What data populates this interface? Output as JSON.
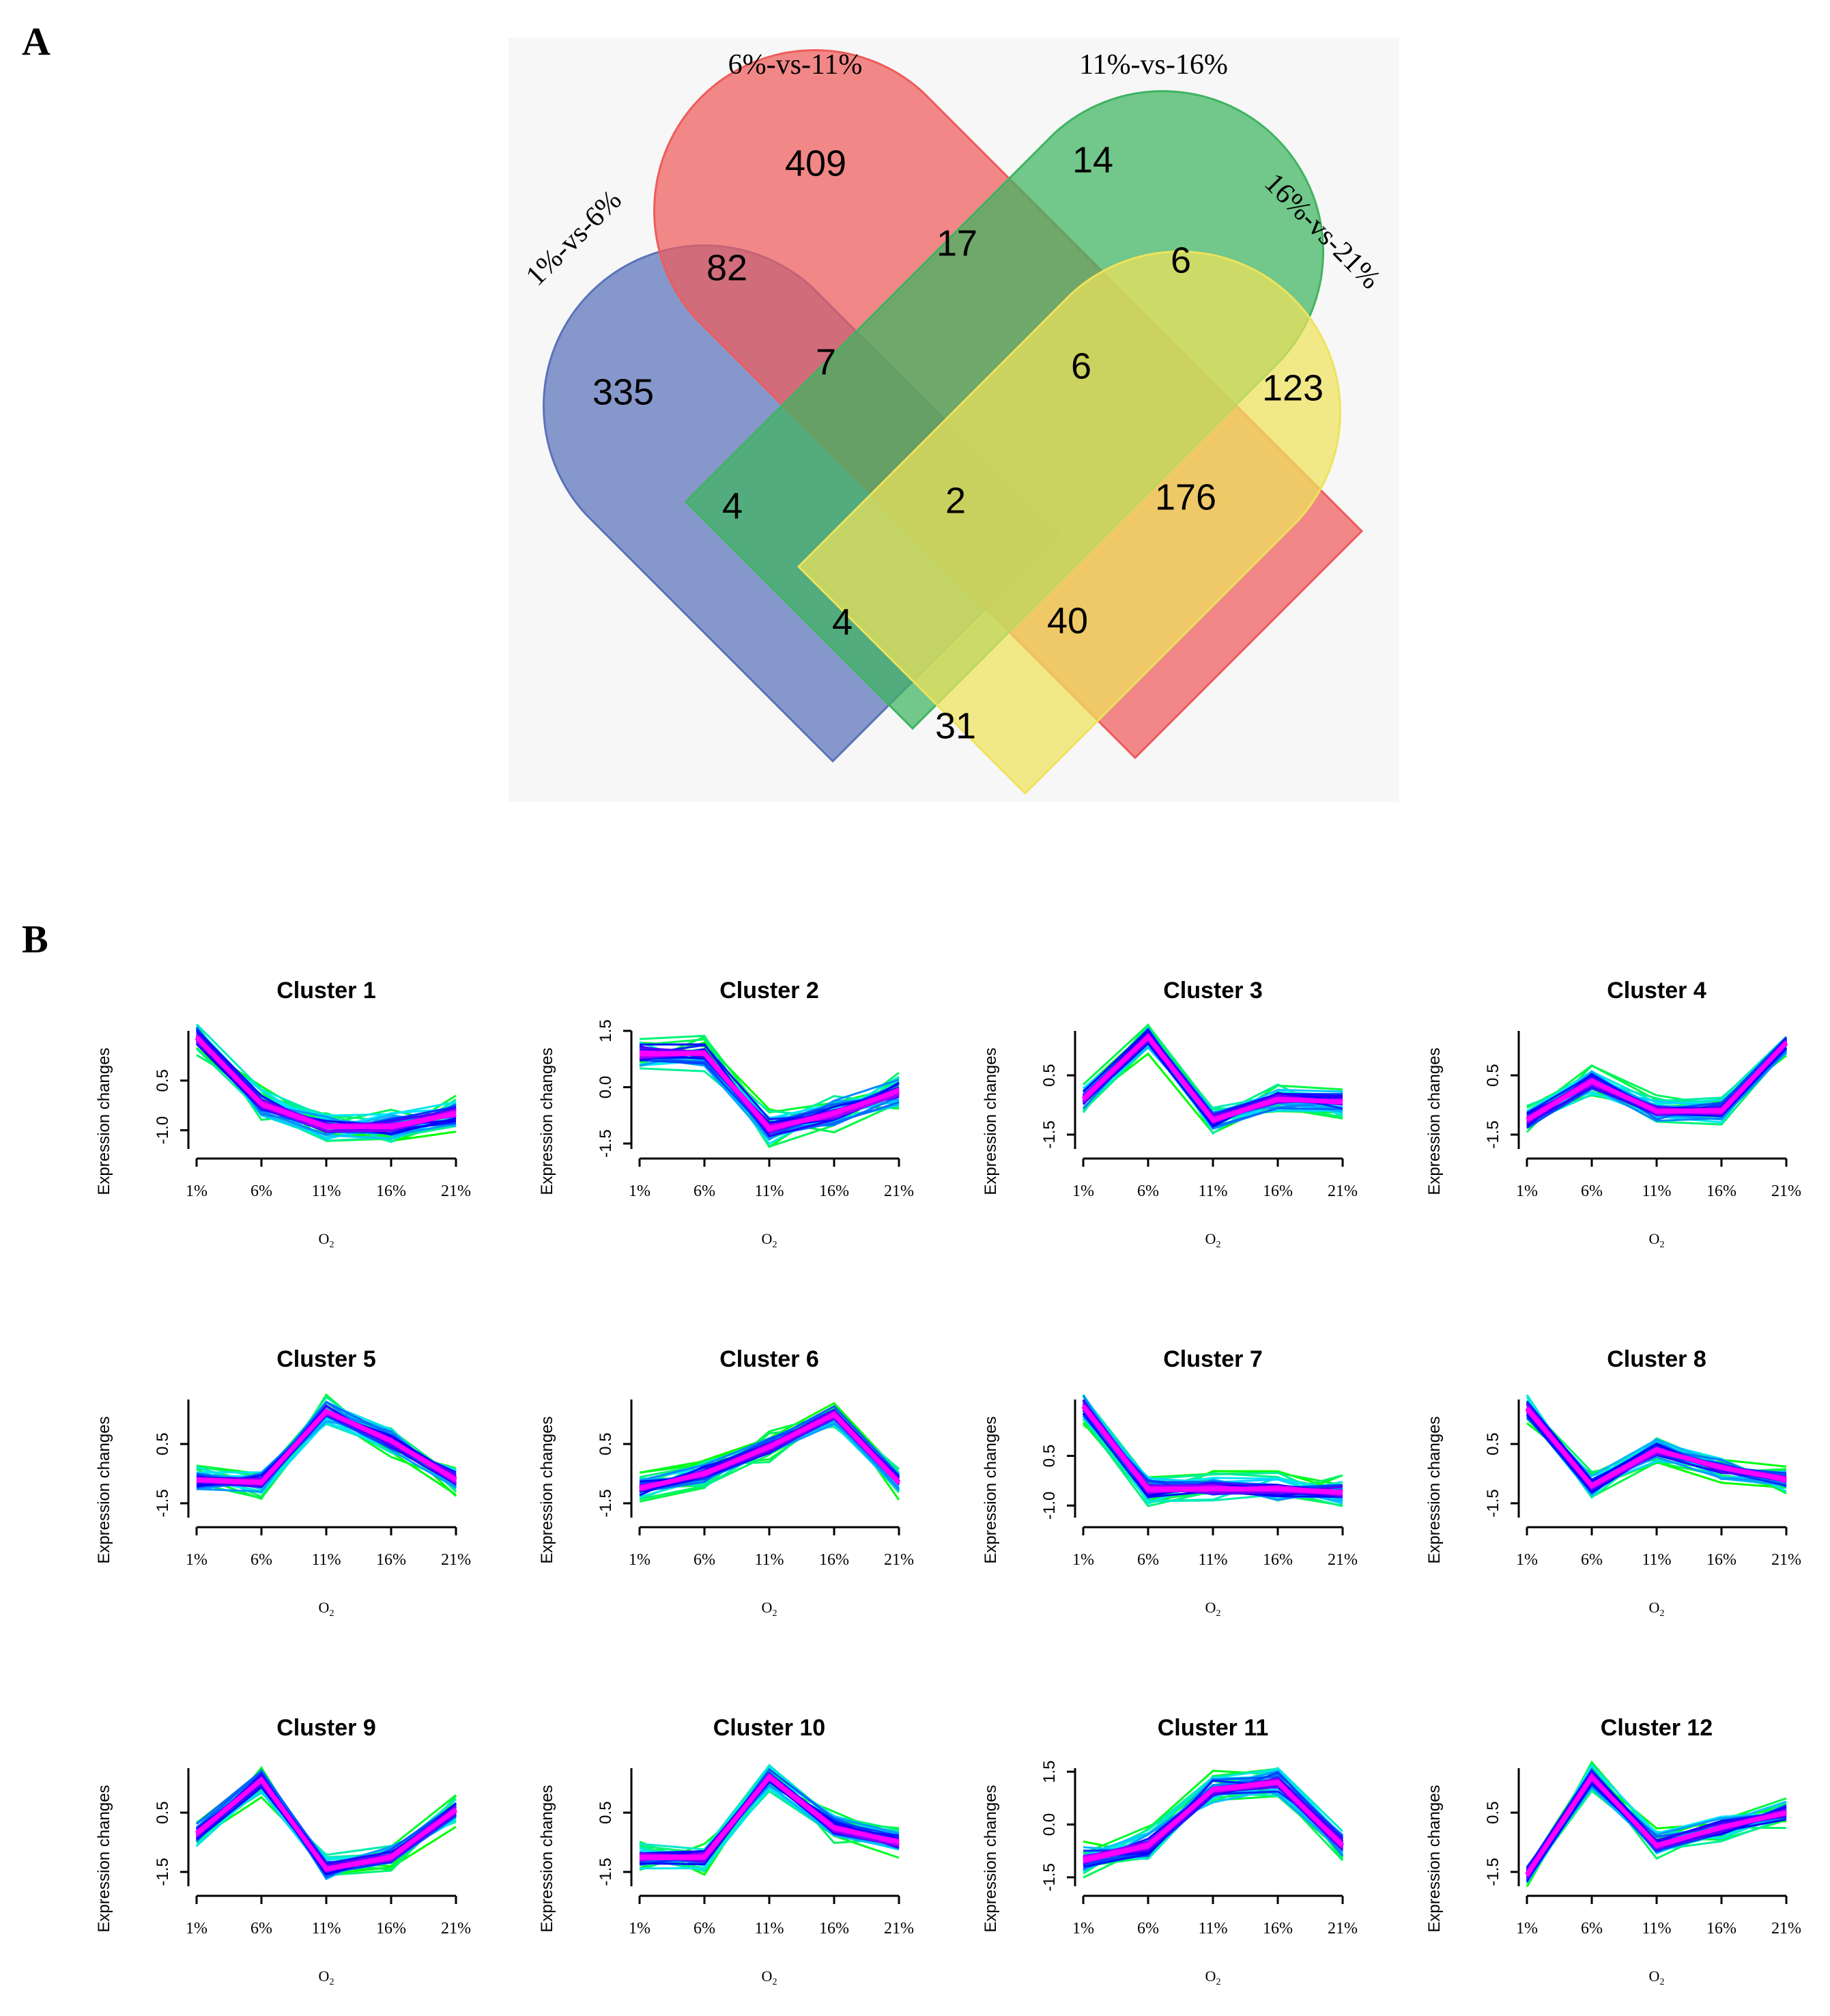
{
  "panel_a": {
    "letter": "A"
  },
  "panel_b": {
    "letter": "B"
  },
  "chart_data": [
    {
      "type": "venn",
      "sets": [
        {
          "name": "1%-vs-6%",
          "color": "#5a72ba"
        },
        {
          "name": "6%-vs-11%",
          "color": "#ef5b5b"
        },
        {
          "name": "11%-vs-16%",
          "color": "#3fb460"
        },
        {
          "name": "16%-vs-21%",
          "color": "#eee35c"
        }
      ],
      "regions": [
        {
          "sets": [
            "1%-vs-6%"
          ],
          "value": 335
        },
        {
          "sets": [
            "6%-vs-11%"
          ],
          "value": 409
        },
        {
          "sets": [
            "11%-vs-16%"
          ],
          "value": 14
        },
        {
          "sets": [
            "16%-vs-21%"
          ],
          "value": 123
        },
        {
          "sets": [
            "1%-vs-6%",
            "6%-vs-11%"
          ],
          "value": 82
        },
        {
          "sets": [
            "6%-vs-11%",
            "11%-vs-16%"
          ],
          "value": 17
        },
        {
          "sets": [
            "11%-vs-16%",
            "16%-vs-21%"
          ],
          "value": 6
        },
        {
          "sets": [
            "1%-vs-6%",
            "6%-vs-11%",
            "11%-vs-16%"
          ],
          "value": 7
        },
        {
          "sets": [
            "6%-vs-11%",
            "11%-vs-16%",
            "16%-vs-21%"
          ],
          "value": 6
        },
        {
          "sets": [
            "1%-vs-6%",
            "11%-vs-16%"
          ],
          "value": 4
        },
        {
          "sets": [
            "1%-vs-6%",
            "6%-vs-11%",
            "11%-vs-16%",
            "16%-vs-21%"
          ],
          "value": 2
        },
        {
          "sets": [
            "6%-vs-11%",
            "16%-vs-21%"
          ],
          "value": 176
        },
        {
          "sets": [
            "1%-vs-6%",
            "11%-vs-16%",
            "16%-vs-21%"
          ],
          "value": 4
        },
        {
          "sets": [
            "1%-vs-6%",
            "6%-vs-11%",
            "16%-vs-21%"
          ],
          "value": 40
        },
        {
          "sets": [
            "1%-vs-6%",
            "16%-vs-21%"
          ],
          "value": 31
        }
      ]
    },
    {
      "type": "line",
      "layout": "3x4 grid of small multiples",
      "x": [
        "1%",
        "6%",
        "11%",
        "16%",
        "21%"
      ],
      "xlabel": "O2",
      "ylabel": "Expression changes",
      "color_scale": [
        "#00ff00",
        "#00e5ff",
        "#0000ff",
        "#ff00ff"
      ],
      "clusters": [
        {
          "title": "Cluster 1",
          "yticks": [
            "-1.0",
            "0.5"
          ],
          "ylim": [
            -1.4,
            2.0
          ],
          "center": [
            1.8,
            -0.2,
            -0.9,
            -0.9,
            -0.5
          ]
        },
        {
          "title": "Cluster 2",
          "yticks": [
            "-1.5",
            "0.0",
            "1.5"
          ],
          "ylim": [
            -1.5,
            1.5
          ],
          "center": [
            0.9,
            0.9,
            -1.1,
            -0.7,
            -0.1
          ]
        },
        {
          "title": "Cluster 3",
          "yticks": [
            "-1.5",
            "0.5"
          ],
          "ylim": [
            -1.8,
            2.0
          ],
          "center": [
            -0.3,
            1.8,
            -1.0,
            -0.3,
            -0.4
          ]
        },
        {
          "title": "Cluster 4",
          "yticks": [
            "-1.5",
            "0.5"
          ],
          "ylim": [
            -1.8,
            2.0
          ],
          "center": [
            -1.0,
            0.3,
            -0.7,
            -0.7,
            1.6
          ]
        },
        {
          "title": "Cluster 5",
          "yticks": [
            "-1.5",
            "0.5"
          ],
          "ylim": [
            -1.8,
            2.0
          ],
          "center": [
            -0.7,
            -0.8,
            1.6,
            0.6,
            -0.7
          ]
        },
        {
          "title": "Cluster 6",
          "yticks": [
            "-1.5",
            "0.5"
          ],
          "ylim": [
            -1.8,
            2.0
          ],
          "center": [
            -1.0,
            -0.5,
            0.4,
            1.5,
            -0.8
          ]
        },
        {
          "title": "Cluster 7",
          "yticks": [
            "-1.0",
            "0.5"
          ],
          "ylim": [
            -1.2,
            2.2
          ],
          "center": [
            2.0,
            -0.5,
            -0.5,
            -0.5,
            -0.6
          ]
        },
        {
          "title": "Cluster 8",
          "yticks": [
            "-1.5",
            "0.5"
          ],
          "ylim": [
            -1.8,
            2.0
          ],
          "center": [
            1.7,
            -0.9,
            0.3,
            -0.3,
            -0.7
          ]
        },
        {
          "title": "Cluster 9",
          "yticks": [
            "-1.5",
            "0.5"
          ],
          "ylim": [
            -1.8,
            2.0
          ],
          "center": [
            -0.2,
            1.6,
            -1.4,
            -1.0,
            0.6
          ]
        },
        {
          "title": "Cluster 10",
          "yticks": [
            "-1.5",
            "0.5"
          ],
          "ylim": [
            -1.8,
            2.0
          ],
          "center": [
            -1.0,
            -1.0,
            1.7,
            0.0,
            -0.5
          ]
        },
        {
          "title": "Cluster 11",
          "yticks": [
            "-1.5",
            "0.0",
            "1.5"
          ],
          "ylim": [
            -1.6,
            1.6
          ],
          "center": [
            -1.0,
            -0.6,
            1.0,
            1.2,
            -0.6
          ]
        },
        {
          "title": "Cluster 12",
          "yticks": [
            "-1.5",
            "0.5"
          ],
          "ylim": [
            -1.8,
            2.0
          ],
          "center": [
            -1.6,
            1.7,
            -0.6,
            0.0,
            0.5
          ]
        }
      ]
    }
  ]
}
